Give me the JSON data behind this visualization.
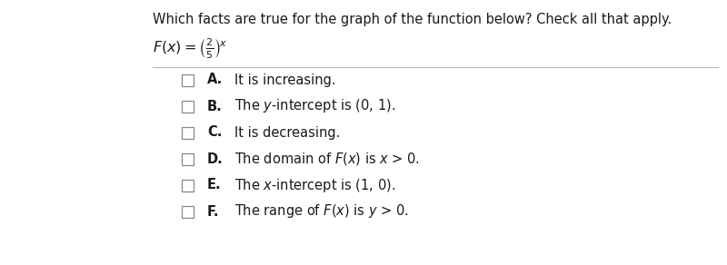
{
  "title": "Which facts are true for the graph of the function below? Check all that apply.",
  "background_color": "#ffffff",
  "text_color": "#1a1a1a",
  "title_fontsize": 10.5,
  "option_fontsize": 10.5,
  "options": [
    {
      "letter": "A.",
      "text": "It is increasing."
    },
    {
      "letter": "B.",
      "text": "The $y$-intercept is (0, 1)."
    },
    {
      "letter": "C.",
      "text": "It is decreasing."
    },
    {
      "letter": "D.",
      "text": "The domain of $F(x)$ is $x$ > 0."
    },
    {
      "letter": "E.",
      "text": "The $x$-intercept is (1, 0)."
    },
    {
      "letter": "F.",
      "text": "The range of $F(x)$ is $y$ > 0."
    }
  ]
}
